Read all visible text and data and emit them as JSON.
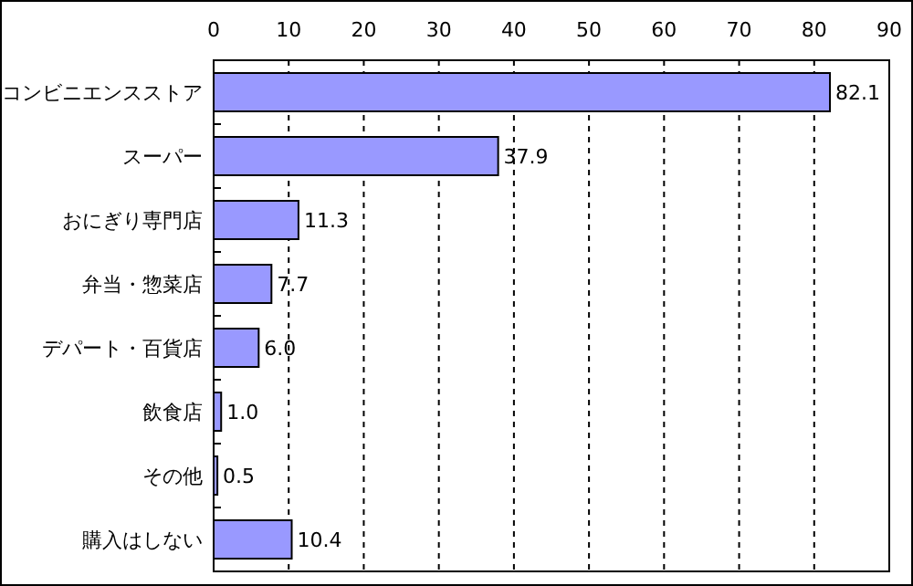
{
  "chart_data": {
    "type": "bar",
    "orientation": "horizontal",
    "categories": [
      "コンビニエンスストア",
      "スーパー",
      "おにぎり専門店",
      "弁当・惣菜店",
      "デパート・百貨店",
      "飲食店",
      "その他",
      "購入はしない"
    ],
    "values": [
      82.1,
      37.9,
      11.3,
      7.7,
      6.0,
      1.0,
      0.5,
      10.4
    ],
    "value_labels": [
      "82.1",
      "37.9",
      "11.3",
      "7.7",
      "6.0",
      "1.0",
      "0.5",
      "10.4"
    ],
    "color": "#9999ff",
    "xlim": [
      0,
      90
    ],
    "xticks": [
      0,
      10,
      20,
      30,
      40,
      50,
      60,
      70,
      80,
      90
    ],
    "grid": "x"
  }
}
